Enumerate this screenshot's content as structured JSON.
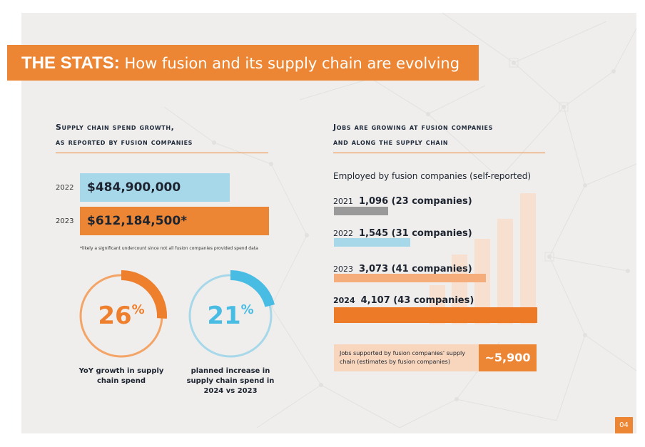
{
  "banner": {
    "bold": "THE STATS:",
    "rest": " How fusion and its supply chain are evolving"
  },
  "spend": {
    "heading_line1": "Supply chain spend growth,",
    "heading_line2": "as reported by fusion companies",
    "rows": [
      {
        "year": "2022",
        "value_text": "$484,900,000",
        "value": 484900000,
        "color": "#a7d8ea"
      },
      {
        "year": "2023",
        "value_text": "$612,184,500*",
        "value": 612184500,
        "color": "#ec8634"
      }
    ],
    "note": "*likely a significant undercount since not all fusion companies provided spend data"
  },
  "rings": [
    {
      "number": "26",
      "suffix": "%",
      "fraction": 0.26,
      "color": "#ee7f2d",
      "track": "#f3a466",
      "caption_lines": [
        "YoY growth in supply",
        "chain spend"
      ]
    },
    {
      "number": "21",
      "suffix": "%",
      "fraction": 0.21,
      "color": "#49bce3",
      "track": "#a7d8ea",
      "caption_lines": [
        "planned increase in",
        "supply chain spend in",
        "2024 vs 2023"
      ]
    }
  ],
  "jobs": {
    "heading_line1": "Jobs are growing at fusion companies",
    "heading_line2": "and along the supply chain",
    "employed_label": "Employed by fusion companies (self-reported)",
    "rows": [
      {
        "year": "2021",
        "value_text": "1,096 (23 companies)",
        "value": 1096,
        "color": "#9a9a9a"
      },
      {
        "year": "2022",
        "value_text": "1,545 (31 companies)",
        "value": 1545,
        "color": "#a7d8ea"
      },
      {
        "year": "2023",
        "value_text": "3,073 (41 companies)",
        "value": 3073,
        "color": "#f5ad7c"
      },
      {
        "year": "2024",
        "value_text": "4,107 (43 companies)",
        "value": 4107,
        "color": "#ec7a26"
      }
    ],
    "supply_text": "Jobs supported by fusion companies' supply chain (estimates by fusion companies)",
    "supply_value": "~5,900"
  },
  "page": {
    "number": "04"
  },
  "colors": {
    "accent": "#ec8634",
    "panel": "#efeeed"
  }
}
